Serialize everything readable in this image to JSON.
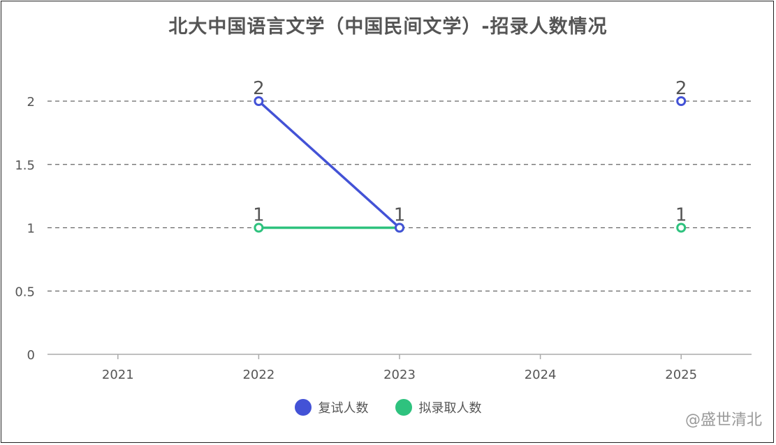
{
  "chart_data": {
    "type": "line",
    "title": "北大中国语言文学（中国民间文学）-招录人数情况",
    "categories": [
      "2021",
      "2022",
      "2023",
      "2024",
      "2025"
    ],
    "ylim": [
      0,
      2
    ],
    "yticks": [
      "0",
      "0.5",
      "1",
      "1.5",
      "2"
    ],
    "grid": "horizontal-dashed",
    "legend_position": "bottom-center",
    "series": [
      {
        "name": "复试人数",
        "color": "#4352d6",
        "values": [
          null,
          2,
          1,
          null,
          2
        ],
        "labels": [
          "",
          "2",
          "1",
          "",
          "2"
        ]
      },
      {
        "name": "拟录取人数",
        "color": "#2ec27e",
        "values": [
          null,
          1,
          1,
          null,
          1
        ],
        "labels": [
          "",
          "1",
          "",
          "",
          "1"
        ]
      }
    ]
  },
  "watermark": "@盛世清北"
}
